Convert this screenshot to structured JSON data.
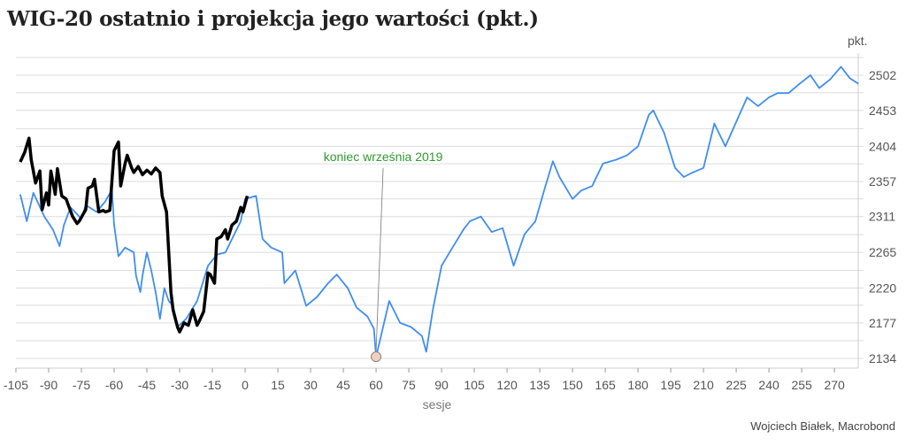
{
  "chart_data": {
    "type": "line",
    "title": "WIG-20 ostatnio i projekcja jego wartości (pkt.)",
    "xlabel": "sesje",
    "ylabel": "pkt.",
    "y_scale": "log",
    "xlim": [
      -105,
      282
    ],
    "ylim": [
      2120,
      2525
    ],
    "x_ticks": [
      -105,
      -90,
      -75,
      -60,
      -45,
      -30,
      -15,
      0,
      15,
      30,
      45,
      60,
      75,
      90,
      105,
      120,
      135,
      150,
      165,
      180,
      195,
      210,
      225,
      240,
      255,
      270
    ],
    "y_ticks": [
      2134,
      2177,
      2220,
      2265,
      2311,
      2357,
      2404,
      2453,
      2502
    ],
    "grid": true,
    "legend": "none",
    "series": [
      {
        "color": "#000000",
        "points": [
          [
            -103,
            2383
          ],
          [
            -101,
            2396
          ],
          [
            -99,
            2415
          ],
          [
            -98,
            2386
          ],
          [
            -96,
            2355
          ],
          [
            -94,
            2371
          ],
          [
            -93,
            2320
          ],
          [
            -91,
            2342
          ],
          [
            -90,
            2326
          ],
          [
            -89,
            2371
          ],
          [
            -87,
            2340
          ],
          [
            -86,
            2374
          ],
          [
            -84,
            2338
          ],
          [
            -82,
            2334
          ],
          [
            -81,
            2326
          ],
          [
            -79,
            2311
          ],
          [
            -77,
            2302
          ],
          [
            -76,
            2305
          ],
          [
            -73,
            2320
          ],
          [
            -72,
            2348
          ],
          [
            -70,
            2351
          ],
          [
            -69,
            2360
          ],
          [
            -67,
            2317
          ],
          [
            -65,
            2319
          ],
          [
            -64,
            2317
          ],
          [
            -62,
            2319
          ],
          [
            -60,
            2398
          ],
          [
            -58,
            2410
          ],
          [
            -57,
            2351
          ],
          [
            -55,
            2381
          ],
          [
            -54,
            2392
          ],
          [
            -52,
            2375
          ],
          [
            -51,
            2369
          ],
          [
            -49,
            2377
          ],
          [
            -47,
            2366
          ],
          [
            -45,
            2372
          ],
          [
            -43,
            2367
          ],
          [
            -41,
            2375
          ],
          [
            -39,
            2369
          ],
          [
            -38,
            2338
          ],
          [
            -36,
            2317
          ],
          [
            -34,
            2215
          ],
          [
            -33,
            2193
          ],
          [
            -31,
            2172
          ],
          [
            -30,
            2166
          ],
          [
            -28,
            2177
          ],
          [
            -26,
            2174
          ],
          [
            -24,
            2193
          ],
          [
            -22,
            2174
          ],
          [
            -21,
            2179
          ],
          [
            -19,
            2191
          ],
          [
            -17,
            2239
          ],
          [
            -16,
            2237
          ],
          [
            -14,
            2226
          ],
          [
            -13,
            2282
          ],
          [
            -11,
            2285
          ],
          [
            -9,
            2294
          ],
          [
            -8,
            2282
          ],
          [
            -6,
            2300
          ],
          [
            -4,
            2305
          ],
          [
            -2,
            2323
          ],
          [
            -1,
            2317
          ],
          [
            1,
            2338
          ]
        ]
      },
      {
        "color": "#3f8ef0",
        "points": [
          [
            -103,
            2340
          ],
          [
            -100,
            2305
          ],
          [
            -97,
            2342
          ],
          [
            -92,
            2311
          ],
          [
            -88,
            2294
          ],
          [
            -85,
            2273
          ],
          [
            -83,
            2300
          ],
          [
            -80,
            2323
          ],
          [
            -75,
            2308
          ],
          [
            -73,
            2326
          ],
          [
            -68,
            2317
          ],
          [
            -64,
            2331
          ],
          [
            -61,
            2346
          ],
          [
            -60,
            2300
          ],
          [
            -58,
            2260
          ],
          [
            -55,
            2271
          ],
          [
            -51,
            2265
          ],
          [
            -50,
            2236
          ],
          [
            -48,
            2215
          ],
          [
            -47,
            2236
          ],
          [
            -45,
            2265
          ],
          [
            -43,
            2242
          ],
          [
            -41,
            2215
          ],
          [
            -39,
            2182
          ],
          [
            -37,
            2220
          ],
          [
            -35,
            2204
          ],
          [
            -33,
            2198
          ],
          [
            -31,
            2172
          ],
          [
            -27,
            2182
          ],
          [
            -22,
            2204
          ],
          [
            -17,
            2248
          ],
          [
            -13,
            2262
          ],
          [
            -9,
            2265
          ],
          [
            -6,
            2282
          ],
          [
            -2,
            2305
          ],
          [
            0,
            2334
          ],
          [
            5,
            2338
          ],
          [
            8,
            2282
          ],
          [
            12,
            2271
          ],
          [
            17,
            2265
          ],
          [
            18,
            2226
          ],
          [
            23,
            2242
          ],
          [
            28,
            2198
          ],
          [
            33,
            2209
          ],
          [
            38,
            2226
          ],
          [
            42,
            2237
          ],
          [
            47,
            2220
          ],
          [
            51,
            2196
          ],
          [
            56,
            2185
          ],
          [
            59,
            2170
          ],
          [
            60,
            2136
          ],
          [
            66,
            2204
          ],
          [
            71,
            2177
          ],
          [
            76,
            2172
          ],
          [
            81,
            2161
          ],
          [
            83,
            2142
          ],
          [
            86,
            2193
          ],
          [
            90,
            2248
          ],
          [
            95,
            2271
          ],
          [
            100,
            2294
          ],
          [
            103,
            2305
          ],
          [
            108,
            2311
          ],
          [
            113,
            2291
          ],
          [
            118,
            2296
          ],
          [
            123,
            2248
          ],
          [
            128,
            2288
          ],
          [
            133,
            2305
          ],
          [
            137,
            2345
          ],
          [
            141,
            2384
          ],
          [
            144,
            2363
          ],
          [
            150,
            2334
          ],
          [
            154,
            2345
          ],
          [
            159,
            2351
          ],
          [
            164,
            2381
          ],
          [
            170,
            2386
          ],
          [
            175,
            2392
          ],
          [
            180,
            2404
          ],
          [
            185,
            2447
          ],
          [
            187,
            2453
          ],
          [
            192,
            2422
          ],
          [
            197,
            2375
          ],
          [
            201,
            2363
          ],
          [
            205,
            2369
          ],
          [
            210,
            2375
          ],
          [
            215,
            2435
          ],
          [
            220,
            2404
          ],
          [
            225,
            2437
          ],
          [
            230,
            2471
          ],
          [
            235,
            2459
          ],
          [
            240,
            2471
          ],
          [
            244,
            2477
          ],
          [
            249,
            2477
          ],
          [
            254,
            2490
          ],
          [
            259,
            2502
          ],
          [
            263,
            2484
          ],
          [
            268,
            2496
          ],
          [
            273,
            2514
          ],
          [
            277,
            2498
          ],
          [
            281,
            2490
          ]
        ]
      }
    ],
    "annotations": [
      {
        "text": "koniec września 2019",
        "x": 60,
        "y": 2136,
        "color": "#2e9a2e"
      }
    ]
  },
  "credit": "Wojciech Białek, Macrobond"
}
